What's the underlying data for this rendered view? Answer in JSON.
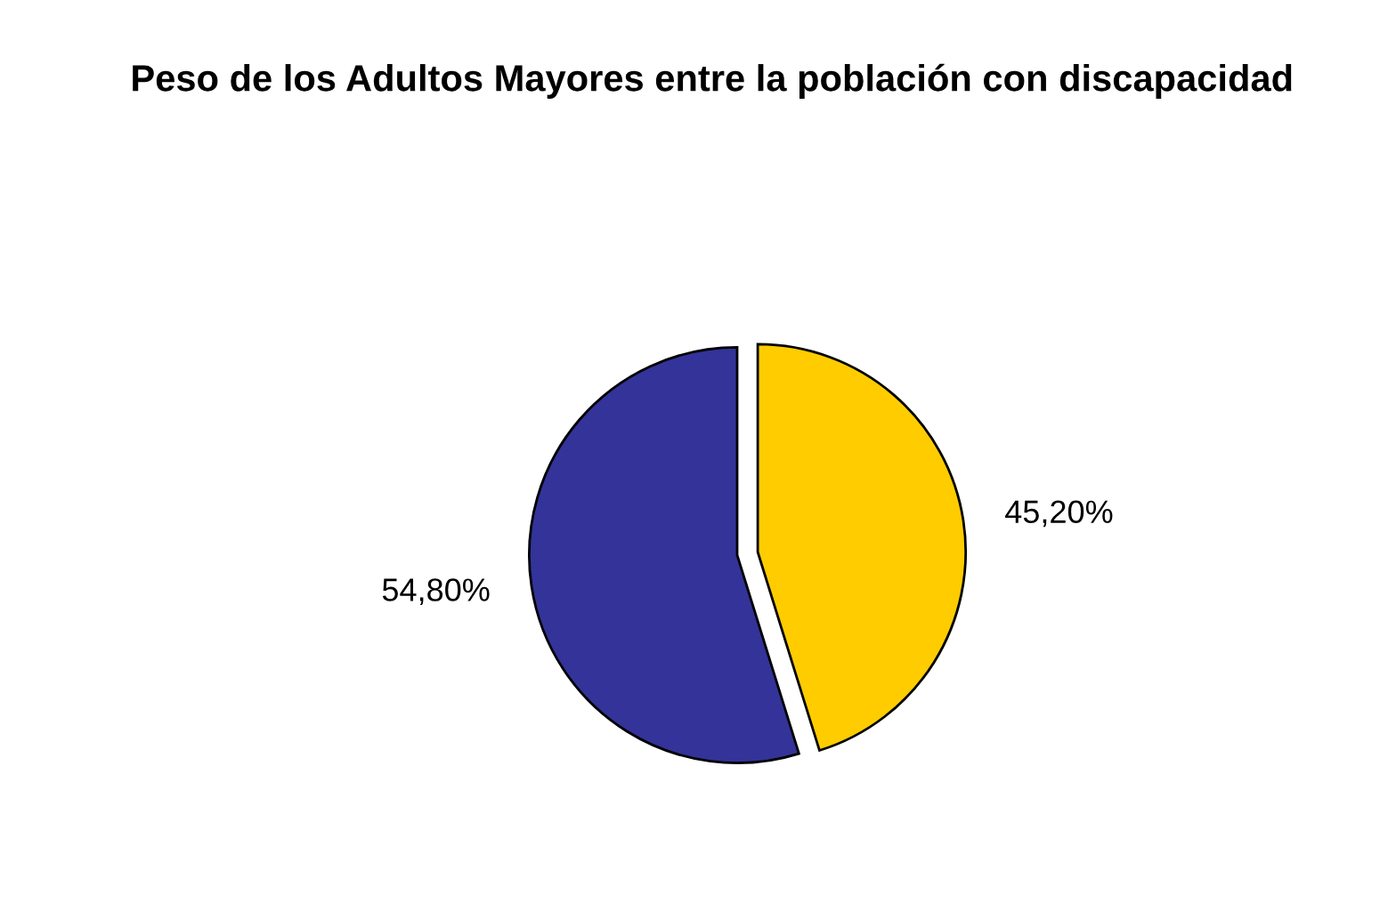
{
  "chart_data": {
    "type": "pie",
    "title": "Peso de los Adultos Mayores entre la población con discapacidad",
    "categories": [
      null,
      null
    ],
    "values": [
      45.2,
      54.8
    ],
    "colors": [
      "#ffcc00",
      "#333399"
    ],
    "value_labels": [
      "45,20%",
      "54,80%"
    ],
    "legend": false
  }
}
